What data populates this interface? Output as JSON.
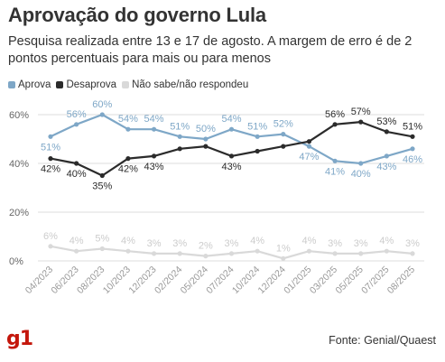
{
  "title": "Aprovação do governo Lula",
  "subtitle": "Pesquisa realizada entre 13 e 17 de agosto. A margem de erro é de 2 pontos percentuais para mais ou para menos",
  "source": "Fonte: Genial/Quaest",
  "logo": "g1",
  "colors": {
    "aprova": "#7ea7c7",
    "desaprova": "#2b2b2b",
    "nao_sabe": "#d9d9d9",
    "grid": "#dddddd",
    "text": "#333333"
  },
  "chart_data": {
    "type": "line",
    "x": [
      "04/2023",
      "06/2023",
      "08/2023",
      "10/2023",
      "12/2023",
      "02/2024",
      "05/2024",
      "07/2024",
      "10/2024",
      "12/2024",
      "01/2025",
      "03/2025",
      "05/2025",
      "07/2025",
      "08/2025"
    ],
    "y_tick_labels": [
      "0%",
      "20%",
      "40%",
      "60%"
    ],
    "ylim": [
      0,
      60
    ],
    "grid": true,
    "legend_position": "top-left",
    "series": [
      {
        "name": "Aprova",
        "color": "#7ea7c7",
        "values": [
          51,
          56,
          60,
          54,
          54,
          51,
          50,
          54,
          51,
          52,
          47,
          41,
          40,
          43,
          46
        ],
        "labels": [
          "51%",
          "56%",
          "60%",
          "54%",
          "54%",
          "51%",
          "50%",
          "54%",
          "51%",
          "52%",
          "47%",
          "41%",
          "40%",
          "43%",
          "46%"
        ]
      },
      {
        "name": "Desaprova",
        "color": "#2b2b2b",
        "values": [
          42,
          40,
          35,
          42,
          43,
          46,
          47,
          43,
          45,
          47,
          49,
          56,
          57,
          53,
          51
        ],
        "labels": [
          "42%",
          "40%",
          "35%",
          "42%",
          "43%",
          "",
          "",
          "43%",
          "",
          "",
          "",
          "56%",
          "57%",
          "53%",
          "51%"
        ]
      },
      {
        "name": "Não sabe/não respondeu",
        "color": "#d9d9d9",
        "values": [
          6,
          4,
          5,
          4,
          3,
          3,
          2,
          3,
          4,
          1,
          4,
          3,
          3,
          4,
          3
        ],
        "labels": [
          "6%",
          "4%",
          "5%",
          "4%",
          "3%",
          "3%",
          "2%",
          "3%",
          "4%",
          "1%",
          "4%",
          "3%",
          "3%",
          "4%",
          "3%"
        ]
      }
    ]
  }
}
